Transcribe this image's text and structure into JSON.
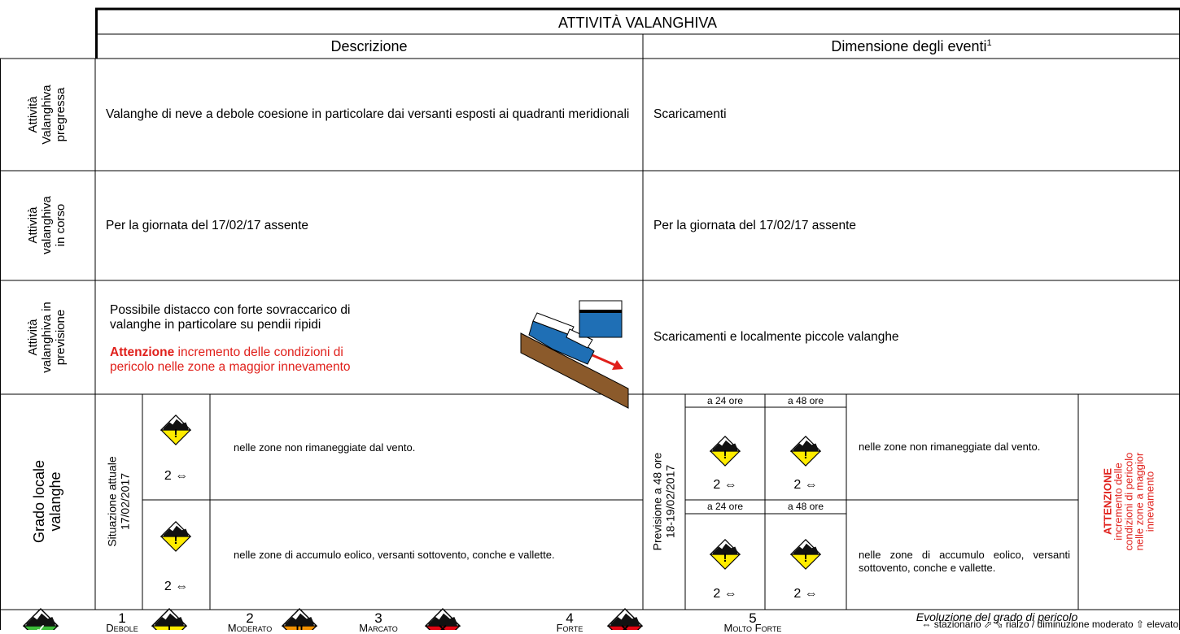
{
  "header": {
    "title": "ATTIVITÀ VALANGHIVA",
    "col_description": "Descrizione",
    "col_dimension": "Dimensione degli eventi",
    "footnote_mark": "1"
  },
  "rows": [
    {
      "label": [
        "Attività",
        "Valanghiva",
        "pregressa"
      ],
      "description": "Valanghe di neve a debole coesione in particolare dai versanti esposti ai quadranti meridionali",
      "dimension": "Scaricamenti"
    },
    {
      "label": [
        "Attività",
        "valanghiva",
        "in corso"
      ],
      "description": "Per la giornata del 17/02/17 assente",
      "dimension": "Per la giornata del 17/02/17 assente"
    },
    {
      "label": [
        "Attività",
        "valanghiva in",
        "previsione"
      ],
      "description": "Possibile distacco con forte sovraccarico di valanghe in particolare su pendii ripidi",
      "warning_bold": "Attenzione",
      "warning_text": "incremento delle condizioni di pericolo nelle zone a maggior innevamento",
      "dimension": "Scaricamenti e localmente piccole valanghe"
    }
  ],
  "grade": {
    "label": [
      "Grado locale",
      "valanghe"
    ],
    "current": {
      "label": [
        "Situazione attuale",
        "17/02/2017"
      ],
      "rows": [
        {
          "level": "2 ⇔",
          "text": "nelle zone non rimaneggiate dal vento."
        },
        {
          "level": "2 ⇔",
          "text": "nelle zone di accumulo eolico, versanti sottovento, conche e vallette."
        }
      ]
    },
    "forecast": {
      "label": [
        "Previsione a 48 ore",
        "18-19/02/2017"
      ],
      "rows": [
        {
          "h24": "a 24 ore",
          "h48": "a 48 ore",
          "level24": "2 ⇔",
          "level48": "2 ⇔",
          "text": "nelle zone non rimaneggiate dal vento."
        },
        {
          "h24": "a 24 ore",
          "h48": "a 48 ore",
          "level24": "2 ⇔",
          "level48": "2 ⇔",
          "text": "nelle zone di accumulo eolico, versanti sottovento, conche e vallette."
        }
      ]
    },
    "warning": [
      "ATTENZIONE",
      "incremento delle",
      "condizioni di pericolo",
      "nelle zone a maggior",
      "innevamento"
    ]
  },
  "legend": {
    "levels": [
      {
        "number": 1,
        "name": "Debole"
      },
      {
        "number": 2,
        "name": "Moderato"
      },
      {
        "number": 3,
        "name": "Marcato"
      },
      {
        "number": 4,
        "name": "Forte"
      },
      {
        "number": 5,
        "name": "Molto Forte"
      }
    ],
    "evolution_title": "Evoluzione del grado di pericolo",
    "evolution_text": "⇔ stazionario ⬀ ⬂ rialzo / diminuzione moderato ⇧ elevato"
  }
}
